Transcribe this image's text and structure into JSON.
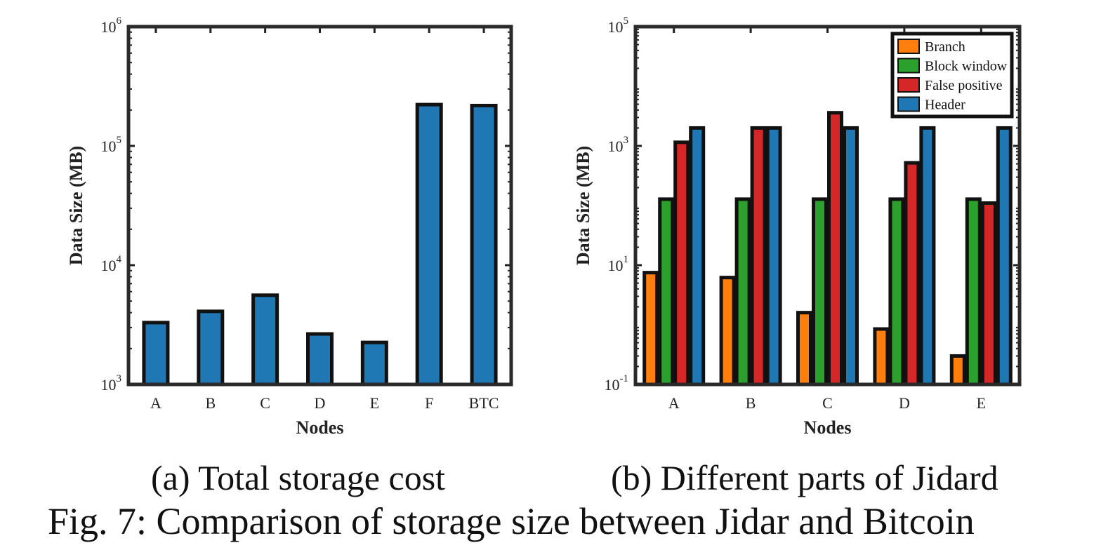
{
  "chart_data": [
    {
      "type": "bar",
      "scale": "log",
      "title": "",
      "xlabel": "Nodes",
      "ylabel": "Data Size (MB)",
      "ylim": [
        1000,
        1000000
      ],
      "yticks": [
        {
          "base": "10",
          "exp": "3"
        },
        {
          "base": "10",
          "exp": "4"
        },
        {
          "base": "10",
          "exp": "5"
        },
        {
          "base": "10",
          "exp": "6"
        }
      ],
      "categories": [
        "A",
        "B",
        "C",
        "D",
        "E",
        "F",
        "BTC"
      ],
      "values": [
        3300,
        4100,
        5600,
        2650,
        2250,
        222000,
        218000
      ],
      "color": "#1f77b4"
    },
    {
      "type": "bar",
      "scale": "log",
      "title": "",
      "xlabel": "Nodes",
      "ylabel": "Data Size (MB)",
      "ylim": [
        0.1,
        100000
      ],
      "yticks": [
        {
          "base": "10",
          "exp": "-1"
        },
        {
          "base": "10",
          "exp": "1"
        },
        {
          "base": "10",
          "exp": "3"
        },
        {
          "base": "10",
          "exp": "5"
        }
      ],
      "categories": [
        "A",
        "B",
        "C",
        "D",
        "E"
      ],
      "legend_position": "top-right",
      "series": [
        {
          "name": "Branch",
          "color": "#ff7f0e",
          "values": [
            7.5,
            6.2,
            1.6,
            0.85,
            0.3
          ]
        },
        {
          "name": "Block window",
          "color": "#2ca02c",
          "values": [
            128,
            128,
            128,
            128,
            128
          ]
        },
        {
          "name": "False positive",
          "color": "#d62728",
          "values": [
            1150,
            2000,
            3600,
            520,
            110
          ]
        },
        {
          "name": "Header",
          "color": "#1f77b4",
          "values": [
            2000,
            2000,
            2000,
            2000,
            2000
          ]
        }
      ]
    }
  ],
  "captions": {
    "a": "(a) Total storage cost",
    "b": "(b) Different parts of Jidard",
    "figure": "Fig. 7: Comparison of storage size between Jidar and Bitcoin"
  }
}
